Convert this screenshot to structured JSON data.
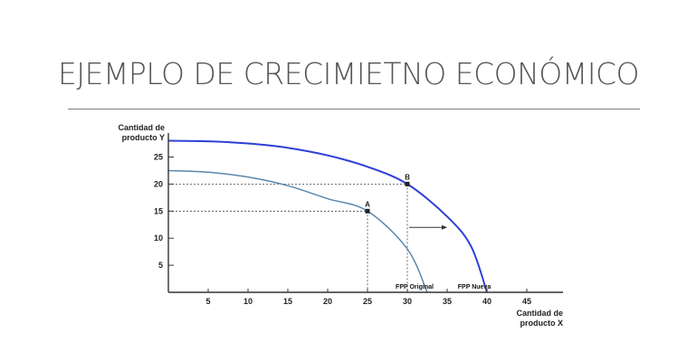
{
  "slide": {
    "title": "EJEMPLO DE CRECIMIETNO ECONÓMICO"
  },
  "chart_data": {
    "type": "line",
    "ylabel_lines": [
      "Cantidad de",
      "producto Y"
    ],
    "xlabel_lines": [
      "Cantidad de",
      "producto X"
    ],
    "xlim": [
      0,
      50
    ],
    "ylim": [
      0,
      28
    ],
    "xticks": [
      5,
      10,
      15,
      20,
      25,
      30,
      35,
      40,
      45
    ],
    "yticks": [
      5,
      10,
      15,
      20,
      25
    ],
    "grid": false,
    "colors": {
      "original": "#5b87ad",
      "nueva": "#2e3fd6",
      "axis": "#333333",
      "guide": "#444444",
      "point": "#222222"
    },
    "series": [
      {
        "name": "FPP Original",
        "key": "original",
        "x": [
          0,
          5,
          10,
          15,
          20,
          25,
          30,
          32.5
        ],
        "y": [
          22.5,
          22.2,
          21.3,
          19.7,
          17.3,
          15,
          8,
          0
        ]
      },
      {
        "name": "FPP Nueva",
        "key": "nueva",
        "x": [
          0,
          5,
          10,
          15,
          20,
          25,
          30,
          35,
          38,
          40
        ],
        "y": [
          28,
          27.9,
          27.5,
          26.7,
          25.3,
          23.2,
          20,
          14,
          8.5,
          0
        ]
      }
    ],
    "points": [
      {
        "label": "A",
        "x": 25,
        "y": 15
      },
      {
        "label": "B",
        "x": 30,
        "y": 20
      }
    ],
    "shift_arrow": {
      "from": [
        30,
        12
      ],
      "to": [
        35,
        12
      ]
    }
  }
}
